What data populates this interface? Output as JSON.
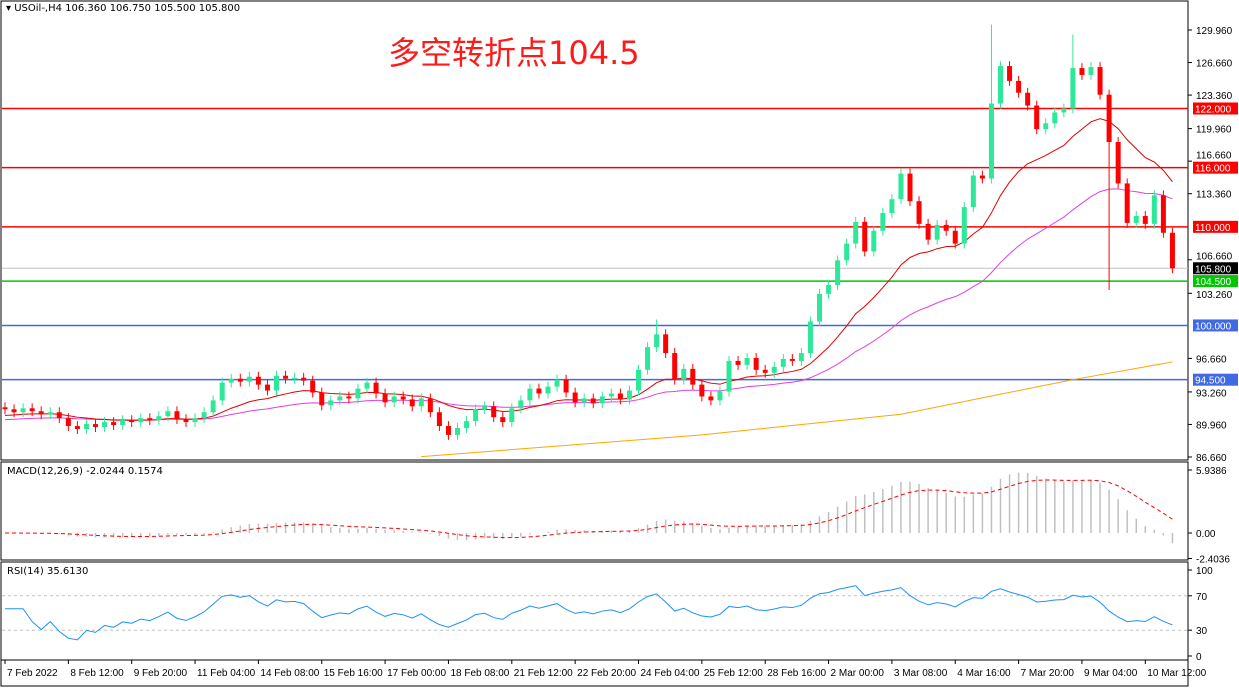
{
  "header": {
    "symbol_info": "USOil-,H4  106.360 106.750 105.500 105.800"
  },
  "annotation": "多空转折点104.5",
  "macd_header": "MACD(12,26,9) -2.0244 0.1574",
  "rsi_header": "RSI(14) 35.6130",
  "colors": {
    "up": "#2ee89a",
    "down": "#ff0000",
    "ma_fast": "#e00000",
    "ma_slow": "#e040e0",
    "ma_long": "#ffa500",
    "rsi": "#1e90ff",
    "macd_signal": "#ff0000",
    "macd_hist": "#c0c0c0"
  },
  "chart_data": {
    "type": "candlestick",
    "symbol": "USOil-",
    "timeframe": "H4",
    "ylim": [
      86.66,
      131.0
    ],
    "y_ticks": [
      "129.960",
      "126.660",
      "123.360",
      "119.960",
      "116.660",
      "113.360",
      "106.660",
      "103.260",
      "96.660",
      "93.260",
      "89.960",
      "86.660"
    ],
    "close": [
      91.5,
      91.2,
      91.6,
      91.3,
      91.0,
      91.2,
      90.6,
      89.8,
      89.5,
      90.0,
      89.7,
      90.2,
      89.9,
      90.4,
      90.2,
      90.6,
      90.4,
      90.8,
      91.3,
      90.5,
      90.2,
      90.6,
      91.2,
      92.4,
      94.2,
      94.6,
      94.3,
      94.8,
      94.0,
      93.4,
      94.9,
      94.6,
      94.7,
      94.4,
      93.2,
      91.9,
      92.4,
      92.8,
      92.6,
      93.6,
      94.2,
      93.1,
      92.2,
      92.8,
      92.5,
      91.8,
      92.6,
      91.2,
      89.8,
      88.9,
      89.6,
      90.3,
      91.5,
      91.8,
      90.7,
      90.2,
      91.6,
      92.4,
      93.6,
      93.1,
      93.8,
      94.5,
      93.2,
      92.2,
      92.6,
      92.1,
      92.8,
      93.1,
      92.5,
      93.4,
      95.5,
      97.8,
      99.1,
      97.2,
      94.5,
      95.6,
      94.0,
      92.8,
      92.4,
      93.3,
      96.4,
      96.0,
      96.7,
      95.5,
      95.2,
      95.8,
      96.6,
      96.4,
      97.2,
      100.4,
      103.2,
      104.1,
      106.6,
      108.3,
      110.5,
      107.5,
      109.6,
      111.4,
      112.8,
      115.4,
      112.6,
      110.3,
      108.7,
      110.2,
      109.6,
      108.3,
      112.0,
      115.2,
      114.9,
      122.5,
      126.3,
      124.8,
      123.6,
      122.3,
      119.9,
      120.5,
      121.6,
      122.0,
      126.1,
      125.4,
      126.2,
      123.4,
      118.6,
      114.4,
      110.4,
      111.1,
      110.3,
      113.2,
      109.4,
      105.8
    ],
    "notable_wicks": {
      "109": {
        "high": 130.5
      },
      "118": {
        "high": 129.5
      },
      "122": {
        "low": 103.6
      },
      "72": {
        "high": 100.6
      }
    },
    "ma_long_points": [
      [
        46,
        86.7
      ],
      [
        77,
        88.9
      ],
      [
        99,
        91.0
      ],
      [
        118,
        94.5
      ],
      [
        129,
        96.3
      ]
    ],
    "levels": [
      {
        "value": 122.0,
        "label": "122.000",
        "color": "#ff0000"
      },
      {
        "value": 116.0,
        "label": "116.000",
        "color": "#ff0000"
      },
      {
        "value": 110.0,
        "label": "110.000",
        "color": "#ff0000"
      },
      {
        "value": 104.5,
        "label": "104.500",
        "color": "#00c800"
      },
      {
        "value": 100.0,
        "label": "100.000",
        "color": "#4169e1"
      },
      {
        "value": 94.5,
        "label": "94.500",
        "color": "#4169e1"
      }
    ],
    "current_price": {
      "value": 105.8,
      "label": "105.800"
    },
    "macd": {
      "ylim": [
        -2.4036,
        5.9386
      ],
      "ticks": [
        "5.9386",
        "0.00",
        "-2.4036"
      ]
    },
    "rsi": {
      "ylim": [
        0,
        100
      ],
      "ticks": [
        "100",
        "70",
        "30",
        "0"
      ],
      "levels": [
        70,
        30
      ]
    },
    "x_ticks": [
      "7 Feb 2022",
      "8 Feb 12:00",
      "9 Feb 20:00",
      "11 Feb 04:00",
      "14 Feb 08:00",
      "15 Feb 16:00",
      "17 Feb 00:00",
      "18 Feb 08:00",
      "21 Feb 12:00",
      "22 Feb 20:00",
      "24 Feb 04:00",
      "25 Feb 12:00",
      "28 Feb 16:00",
      "2 Mar 00:00",
      "3 Mar 08:00",
      "4 Mar 16:00",
      "7 Mar 20:00",
      "9 Mar 04:00",
      "10 Mar 12:00"
    ]
  }
}
